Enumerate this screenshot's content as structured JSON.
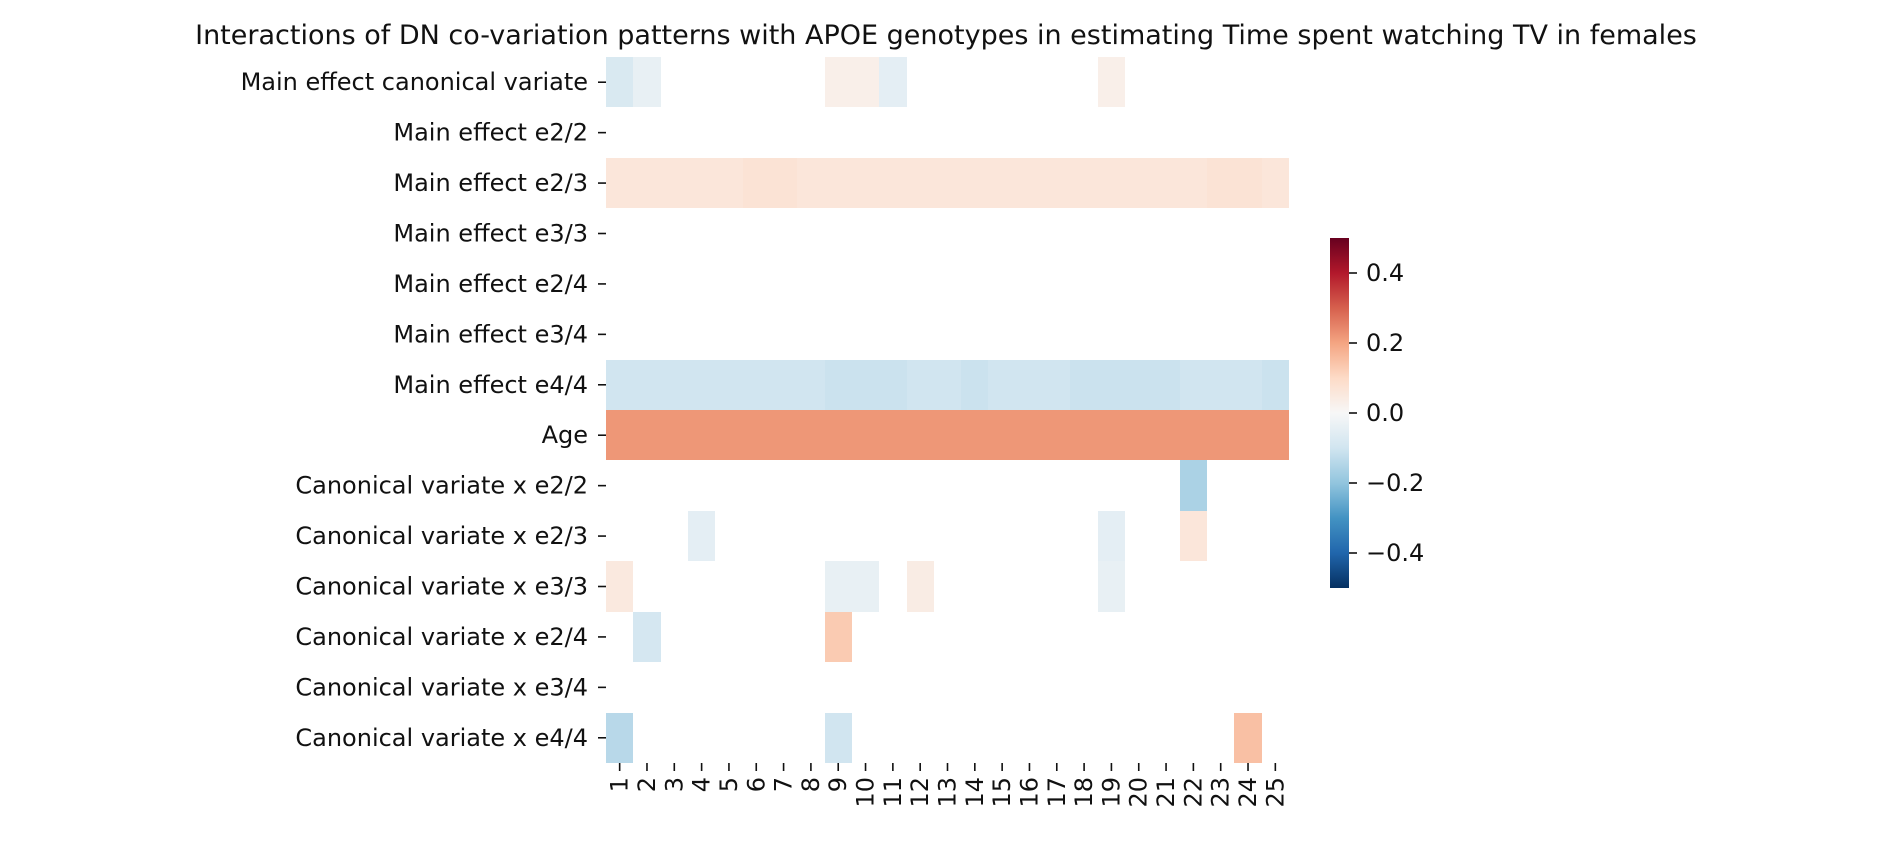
{
  "chart_data": {
    "type": "heatmap",
    "title": "Interactions of DN co-variation patterns with APOE genotypes in estimating Time spent watching TV in females",
    "xlabel": "",
    "ylabel": "",
    "rows": [
      "Main effect canonical variate",
      "Main effect e2/2",
      "Main effect e2/3",
      "Main effect e3/3",
      "Main effect e2/4",
      "Main effect e3/4",
      "Main effect e4/4",
      "Age",
      "Canonical variate x e2/2",
      "Canonical variate x e2/3",
      "Canonical variate x e3/3",
      "Canonical variate x e2/4",
      "Canonical variate x e3/4",
      "Canonical variate x e4/4"
    ],
    "columns": [
      "1",
      "2",
      "3",
      "4",
      "5",
      "6",
      "7",
      "8",
      "9",
      "10",
      "11",
      "12",
      "13",
      "14",
      "15",
      "16",
      "17",
      "18",
      "19",
      "20",
      "21",
      "22",
      "23",
      "24",
      "25"
    ],
    "values": [
      [
        -0.08,
        -0.04,
        null,
        null,
        null,
        null,
        null,
        null,
        0.03,
        0.03,
        -0.05,
        null,
        null,
        null,
        null,
        null,
        null,
        null,
        0.03,
        null,
        null,
        null,
        null,
        null,
        null
      ],
      [
        null,
        null,
        null,
        null,
        null,
        null,
        null,
        null,
        null,
        null,
        null,
        null,
        null,
        null,
        null,
        null,
        null,
        null,
        null,
        null,
        null,
        null,
        null,
        null,
        null
      ],
      [
        0.06,
        0.06,
        0.06,
        0.06,
        0.06,
        0.07,
        0.07,
        0.06,
        0.06,
        0.06,
        0.06,
        0.06,
        0.06,
        0.06,
        0.06,
        0.06,
        0.06,
        0.06,
        0.06,
        0.06,
        0.06,
        0.06,
        0.07,
        0.07,
        0.06
      ],
      [
        null,
        null,
        null,
        null,
        null,
        null,
        null,
        null,
        null,
        null,
        null,
        null,
        null,
        null,
        null,
        null,
        null,
        null,
        null,
        null,
        null,
        null,
        null,
        null,
        null
      ],
      [
        null,
        null,
        null,
        null,
        null,
        null,
        null,
        null,
        null,
        null,
        null,
        null,
        null,
        null,
        null,
        null,
        null,
        null,
        null,
        null,
        null,
        null,
        null,
        null,
        null
      ],
      [
        null,
        null,
        null,
        null,
        null,
        null,
        null,
        null,
        null,
        null,
        null,
        null,
        null,
        null,
        null,
        null,
        null,
        null,
        null,
        null,
        null,
        null,
        null,
        null,
        null
      ],
      [
        -0.1,
        -0.1,
        -0.1,
        -0.1,
        -0.1,
        -0.1,
        -0.1,
        -0.1,
        -0.11,
        -0.11,
        -0.11,
        -0.1,
        -0.1,
        -0.11,
        -0.1,
        -0.1,
        -0.1,
        -0.11,
        -0.11,
        -0.11,
        -0.11,
        -0.1,
        -0.1,
        -0.1,
        -0.11
      ],
      [
        0.22,
        0.22,
        0.22,
        0.22,
        0.22,
        0.22,
        0.22,
        0.22,
        0.22,
        0.22,
        0.22,
        0.22,
        0.22,
        0.22,
        0.22,
        0.22,
        0.22,
        0.22,
        0.22,
        0.22,
        0.22,
        0.22,
        0.22,
        0.22,
        0.22
      ],
      [
        null,
        null,
        null,
        null,
        null,
        null,
        null,
        null,
        null,
        null,
        null,
        null,
        null,
        null,
        null,
        null,
        null,
        null,
        null,
        null,
        null,
        -0.16,
        null,
        null,
        null
      ],
      [
        null,
        null,
        null,
        -0.05,
        null,
        null,
        null,
        null,
        null,
        null,
        null,
        null,
        null,
        null,
        null,
        null,
        null,
        null,
        -0.05,
        null,
        null,
        0.06,
        null,
        null,
        null
      ],
      [
        0.05,
        null,
        null,
        null,
        null,
        null,
        null,
        null,
        -0.04,
        -0.04,
        null,
        0.04,
        null,
        null,
        null,
        null,
        null,
        null,
        -0.04,
        null,
        null,
        null,
        null,
        null,
        null
      ],
      [
        null,
        -0.09,
        null,
        null,
        null,
        null,
        null,
        null,
        0.13,
        null,
        null,
        null,
        null,
        null,
        null,
        null,
        null,
        null,
        null,
        null,
        null,
        null,
        null,
        null,
        null
      ],
      [
        null,
        null,
        null,
        null,
        null,
        null,
        null,
        null,
        null,
        null,
        null,
        null,
        null,
        null,
        null,
        null,
        null,
        null,
        null,
        null,
        null,
        null,
        null,
        null,
        null
      ],
      [
        -0.14,
        null,
        null,
        null,
        null,
        null,
        null,
        null,
        -0.1,
        null,
        null,
        null,
        null,
        null,
        null,
        null,
        null,
        null,
        null,
        null,
        null,
        null,
        null,
        0.15,
        null
      ]
    ],
    "colorbar": {
      "colormap": "RdBu_r",
      "vmin": -0.5,
      "vmax": 0.5,
      "ticks": [
        0.4,
        0.2,
        0.0,
        -0.2,
        -0.4
      ],
      "tick_labels": [
        "0.4",
        "0.2",
        "0.0",
        "−0.2",
        "−0.4"
      ]
    },
    "grid": false,
    "legend": "right"
  }
}
